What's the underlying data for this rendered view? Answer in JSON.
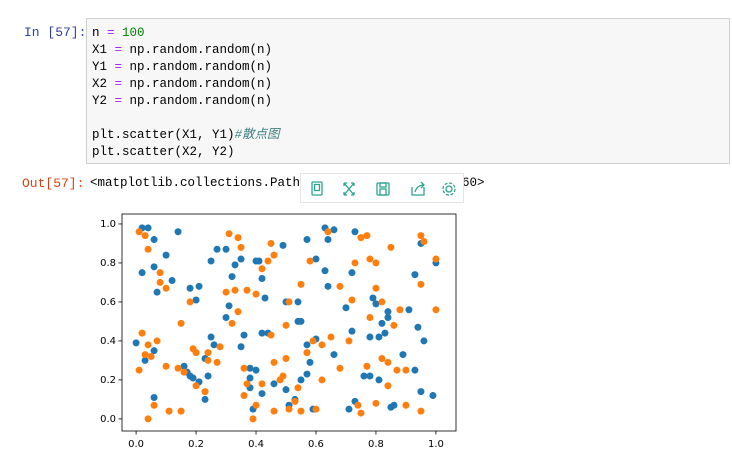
{
  "input_prompt": "In [57]:",
  "code": {
    "lines": [
      [
        {
          "text": "n "
        },
        {
          "text": "=",
          "color": "#aa22ff"
        },
        {
          "text": " 100",
          "color": "#008000"
        }
      ],
      [
        {
          "text": "X1 "
        },
        {
          "text": "=",
          "color": "#aa22ff"
        },
        {
          "text": " np.random.random(n)"
        }
      ],
      [
        {
          "text": "Y1 "
        },
        {
          "text": "=",
          "color": "#aa22ff"
        },
        {
          "text": " np.random.random(n)"
        }
      ],
      [
        {
          "text": "X2 "
        },
        {
          "text": "=",
          "color": "#aa22ff"
        },
        {
          "text": " np.random.random(n)"
        }
      ],
      [
        {
          "text": "Y2 "
        },
        {
          "text": "=",
          "color": "#aa22ff"
        },
        {
          "text": " np.random.random(n)"
        }
      ],
      [],
      [
        {
          "text": "plt.scatter(X1, Y1)"
        },
        {
          "text": "#散点图",
          "color": "#408080",
          "italic": true
        }
      ],
      [
        {
          "text": "plt.scatter(X2, Y2)"
        }
      ]
    ]
  },
  "output_prompt": "Out[57]:",
  "output_text": [
    "<matplotlib.collections.PathCo",
    "60>"
  ],
  "chart_data": {
    "type": "scatter",
    "xlim": [
      -0.047,
      1.067
    ],
    "ylim": [
      -0.062,
      1.051
    ],
    "xticks": [
      {
        "value": 0,
        "label": "0.0"
      },
      0.2,
      0.4,
      0.6,
      0.8,
      {
        "value": 1,
        "label": "1.0"
      }
    ],
    "yticks": [
      {
        "value": 0,
        "label": "0.0"
      },
      0.2,
      0.4,
      0.6,
      0.8,
      {
        "value": 1,
        "label": "1.0"
      }
    ],
    "series": [
      {
        "color": "#1f77b4",
        "x": [
          0.02,
          0.04,
          0.06,
          0.1,
          0.14,
          0.02,
          0.07,
          0.06,
          0.12,
          0.18,
          0.2,
          0.21,
          0.25,
          0.27,
          0.3,
          0.33,
          0.32,
          0.35,
          0.4,
          0.41,
          0.42,
          0.43,
          0.49,
          0.57,
          0.6,
          0.63,
          0.66,
          0.64,
          0.63,
          0.64,
          0.73,
          0.72,
          0.79,
          0.8,
          0.84,
          0.84,
          0.93,
          1.0,
          0.95,
          0.91,
          0.94,
          0.96,
          0.89,
          0.81,
          0.82,
          0.78,
          0.83,
          0.72,
          0.7,
          0.66,
          0.6,
          0.57,
          0.54,
          0.55,
          0.54,
          0.5,
          0.42,
          0.44,
          0.36,
          0.35,
          0.3,
          0.31,
          0.25,
          0.26,
          0.23,
          0.16,
          0.17,
          0.18,
          0.19,
          0.21,
          0.24,
          0.23,
          0.38,
          0.4,
          0.38,
          0.38,
          0.42,
          0.46,
          0.5,
          0.55,
          0.58,
          0.57,
          0.53,
          0.51,
          0.59,
          0.71,
          0.73,
          0.76,
          0.78,
          0.81,
          0.85,
          0.86,
          0.93,
          0.95,
          0.99,
          0.03,
          0.06,
          0.0,
          0.06,
          0.39
        ],
        "values": [
          0.98,
          0.98,
          0.92,
          0.84,
          0.96,
          0.75,
          0.65,
          0.78,
          0.71,
          0.67,
          0.61,
          0.68,
          0.81,
          0.87,
          0.87,
          0.79,
          0.73,
          0.82,
          0.81,
          0.81,
          0.72,
          0.62,
          0.89,
          0.92,
          0.82,
          0.98,
          0.97,
          0.92,
          0.76,
          0.68,
          0.96,
          0.75,
          0.62,
          0.59,
          0.55,
          0.52,
          0.74,
          0.8,
          0.9,
          0.56,
          0.47,
          0.4,
          0.33,
          0.42,
          0.49,
          0.42,
          0.44,
          0.45,
          0.57,
          0.33,
          0.41,
          0.38,
          0.5,
          0.5,
          0.6,
          0.6,
          0.44,
          0.44,
          0.43,
          0.37,
          0.52,
          0.58,
          0.42,
          0.38,
          0.31,
          0.27,
          0.24,
          0.22,
          0.21,
          0.19,
          0.22,
          0.1,
          0.26,
          0.25,
          0.21,
          0.16,
          0.13,
          0.18,
          0.15,
          0.2,
          0.29,
          0.23,
          0.1,
          0.07,
          0.05,
          0.05,
          0.09,
          0.22,
          0.22,
          0.2,
          0.06,
          0.07,
          0.25,
          0.14,
          0.12,
          0.3,
          0.35,
          0.39,
          0.11,
          0.05
        ]
      },
      {
        "color": "#ff7f0e",
        "x": [
          0.01,
          0.03,
          0.04,
          0.08,
          0.1,
          0.08,
          0.18,
          0.2,
          0.19,
          0.15,
          0.02,
          0.03,
          0.01,
          0.07,
          0.1,
          0.04,
          0.06,
          0.11,
          0.15,
          0.16,
          0.2,
          0.23,
          0.24,
          0.3,
          0.31,
          0.34,
          0.35,
          0.33,
          0.32,
          0.34,
          0.37,
          0.4,
          0.42,
          0.45,
          0.46,
          0.44,
          0.45,
          0.5,
          0.51,
          0.55,
          0.58,
          0.57,
          0.59,
          0.62,
          0.65,
          0.68,
          0.64,
          0.73,
          0.75,
          0.77,
          0.78,
          0.8,
          0.85,
          0.8,
          0.82,
          0.78,
          0.82,
          0.84,
          0.87,
          0.88,
          0.86,
          0.95,
          0.96,
          1.0,
          1.0,
          0.95,
          0.9,
          0.9,
          0.95,
          0.84,
          0.8,
          0.75,
          0.74,
          0.77,
          0.68,
          0.6,
          0.55,
          0.51,
          0.53,
          0.49,
          0.48,
          0.54,
          0.46,
          0.42,
          0.4,
          0.39,
          0.36,
          0.37,
          0.36,
          0.28,
          0.27,
          0.14,
          0.04,
          0.05,
          0.24,
          0.46,
          0.5,
          0.62,
          0.71,
          0.72
        ],
        "values": [
          0.96,
          0.94,
          0.87,
          0.75,
          0.67,
          0.7,
          0.6,
          0.34,
          0.36,
          0.49,
          0.44,
          0.33,
          0.25,
          0.4,
          0.27,
          0.0,
          0.07,
          0.04,
          0.04,
          0.24,
          0.17,
          0.14,
          0.34,
          0.65,
          0.95,
          0.93,
          0.88,
          0.66,
          0.49,
          0.55,
          0.66,
          0.64,
          0.77,
          0.9,
          0.84,
          0.81,
          0.43,
          0.48,
          0.6,
          0.69,
          0.81,
          0.34,
          0.4,
          0.38,
          0.42,
          0.68,
          0.96,
          0.8,
          0.93,
          0.94,
          0.82,
          0.8,
          0.88,
          0.67,
          0.6,
          0.52,
          0.31,
          0.29,
          0.25,
          0.56,
          0.48,
          0.94,
          0.91,
          0.82,
          0.56,
          0.69,
          0.25,
          0.07,
          0.04,
          0.17,
          0.08,
          0.03,
          0.07,
          0.27,
          0.26,
          0.05,
          0.04,
          0.05,
          0.09,
          0.22,
          0.2,
          0.16,
          0.04,
          0.18,
          0.07,
          0.0,
          0.26,
          0.18,
          0.12,
          0.37,
          0.29,
          0.26,
          0.38,
          0.32,
          0.3,
          0.29,
          0.31,
          0.2,
          0.4,
          0.61
        ]
      }
    ]
  }
}
